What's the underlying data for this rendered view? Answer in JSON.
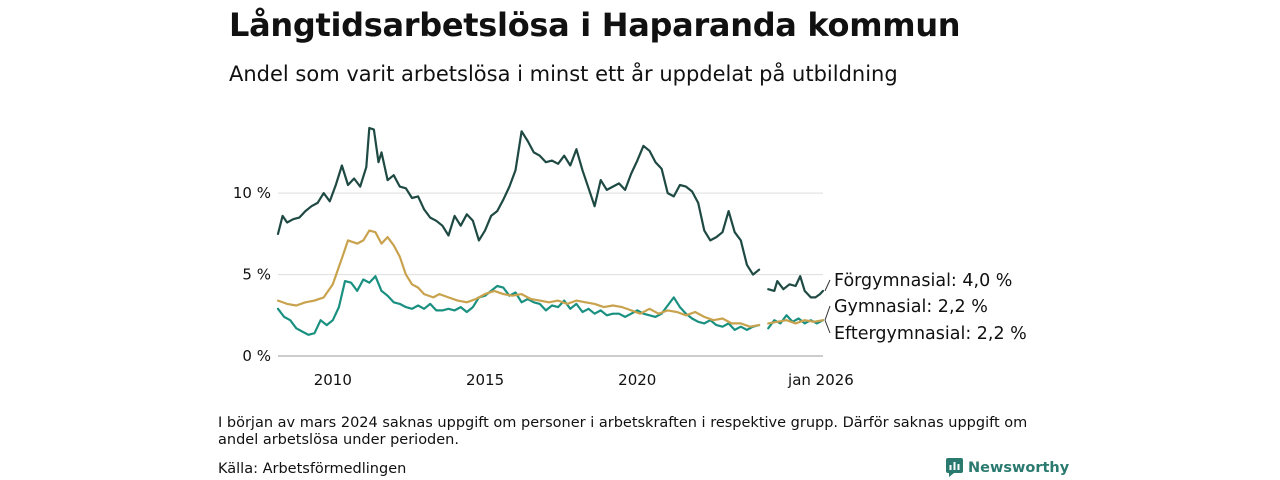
{
  "chart_data": {
    "type": "line",
    "title": "Långtidsarbetslösa i Haparanda kommun",
    "subtitle": "Andel som varit arbetslösa i minst ett år uppdelat på utbildning",
    "x_ticks": [
      {
        "value": 2010,
        "label": "2010"
      },
      {
        "value": 2015,
        "label": "2015"
      },
      {
        "value": 2020,
        "label": "2020"
      },
      {
        "value": 2026,
        "label": "jan 2026"
      }
    ],
    "y_ticks": [
      {
        "value": 0,
        "label": "0 %"
      },
      {
        "value": 5,
        "label": "5 %"
      },
      {
        "value": 10,
        "label": "10 %"
      }
    ],
    "xlim": [
      2008.2,
      2026.1
    ],
    "ylim": [
      0,
      14
    ],
    "gap": [
      2024.1,
      2024.25
    ],
    "series": [
      {
        "name": "Förgymnasial",
        "end_label": "Förgymnasial: 4,0 %",
        "color": "#1f4a44",
        "points": [
          [
            2008.2,
            7.5
          ],
          [
            2008.35,
            8.6
          ],
          [
            2008.5,
            8.2
          ],
          [
            2008.7,
            8.4
          ],
          [
            2008.9,
            8.5
          ],
          [
            2009.1,
            8.9
          ],
          [
            2009.3,
            9.2
          ],
          [
            2009.5,
            9.4
          ],
          [
            2009.7,
            10.0
          ],
          [
            2009.9,
            9.5
          ],
          [
            2010.1,
            10.5
          ],
          [
            2010.3,
            11.7
          ],
          [
            2010.5,
            10.5
          ],
          [
            2010.7,
            10.9
          ],
          [
            2010.9,
            10.4
          ],
          [
            2011.1,
            11.6
          ],
          [
            2011.2,
            14.0
          ],
          [
            2011.35,
            13.9
          ],
          [
            2011.5,
            11.9
          ],
          [
            2011.6,
            12.5
          ],
          [
            2011.8,
            10.8
          ],
          [
            2012.0,
            11.1
          ],
          [
            2012.2,
            10.4
          ],
          [
            2012.4,
            10.3
          ],
          [
            2012.6,
            9.7
          ],
          [
            2012.8,
            9.8
          ],
          [
            2013.0,
            9.0
          ],
          [
            2013.2,
            8.5
          ],
          [
            2013.4,
            8.3
          ],
          [
            2013.6,
            8.0
          ],
          [
            2013.8,
            7.4
          ],
          [
            2014.0,
            8.6
          ],
          [
            2014.2,
            8.0
          ],
          [
            2014.4,
            8.7
          ],
          [
            2014.6,
            8.3
          ],
          [
            2014.8,
            7.1
          ],
          [
            2015.0,
            7.7
          ],
          [
            2015.2,
            8.6
          ],
          [
            2015.4,
            8.9
          ],
          [
            2015.6,
            9.6
          ],
          [
            2015.8,
            10.4
          ],
          [
            2016.0,
            11.4
          ],
          [
            2016.2,
            13.8
          ],
          [
            2016.4,
            13.2
          ],
          [
            2016.6,
            12.5
          ],
          [
            2016.8,
            12.3
          ],
          [
            2017.0,
            11.9
          ],
          [
            2017.2,
            12.0
          ],
          [
            2017.4,
            11.8
          ],
          [
            2017.6,
            12.3
          ],
          [
            2017.8,
            11.7
          ],
          [
            2018.0,
            12.7
          ],
          [
            2018.2,
            11.4
          ],
          [
            2018.4,
            10.3
          ],
          [
            2018.6,
            9.2
          ],
          [
            2018.8,
            10.8
          ],
          [
            2019.0,
            10.2
          ],
          [
            2019.2,
            10.4
          ],
          [
            2019.4,
            10.6
          ],
          [
            2019.6,
            10.2
          ],
          [
            2019.8,
            11.2
          ],
          [
            2020.0,
            12.0
          ],
          [
            2020.2,
            12.9
          ],
          [
            2020.4,
            12.6
          ],
          [
            2020.6,
            11.9
          ],
          [
            2020.8,
            11.5
          ],
          [
            2021.0,
            10.0
          ],
          [
            2021.2,
            9.8
          ],
          [
            2021.4,
            10.5
          ],
          [
            2021.6,
            10.4
          ],
          [
            2021.8,
            10.1
          ],
          [
            2022.0,
            9.4
          ],
          [
            2022.2,
            7.7
          ],
          [
            2022.4,
            7.1
          ],
          [
            2022.6,
            7.3
          ],
          [
            2022.8,
            7.6
          ],
          [
            2023.0,
            8.9
          ],
          [
            2023.2,
            7.6
          ],
          [
            2023.4,
            7.1
          ],
          [
            2023.6,
            5.6
          ],
          [
            2023.8,
            5.0
          ],
          [
            2024.0,
            5.3
          ],
          [
            2024.3,
            4.1
          ],
          [
            2024.5,
            4.0
          ],
          [
            2024.6,
            4.6
          ],
          [
            2024.8,
            4.1
          ],
          [
            2025.0,
            4.4
          ],
          [
            2025.2,
            4.3
          ],
          [
            2025.35,
            4.9
          ],
          [
            2025.5,
            4.0
          ],
          [
            2025.7,
            3.6
          ],
          [
            2025.85,
            3.6
          ],
          [
            2026.0,
            3.8
          ],
          [
            2026.1,
            4.0
          ]
        ]
      },
      {
        "name": "Gymnasial",
        "end_label": "Gymnasial: 2,2 %",
        "color": "#c9a24d",
        "points": [
          [
            2008.2,
            3.4
          ],
          [
            2008.5,
            3.2
          ],
          [
            2008.8,
            3.1
          ],
          [
            2009.1,
            3.3
          ],
          [
            2009.4,
            3.4
          ],
          [
            2009.7,
            3.6
          ],
          [
            2010.0,
            4.4
          ],
          [
            2010.3,
            6.0
          ],
          [
            2010.5,
            7.1
          ],
          [
            2010.8,
            6.9
          ],
          [
            2011.0,
            7.1
          ],
          [
            2011.2,
            7.7
          ],
          [
            2011.4,
            7.6
          ],
          [
            2011.6,
            6.9
          ],
          [
            2011.8,
            7.3
          ],
          [
            2012.0,
            6.8
          ],
          [
            2012.2,
            6.1
          ],
          [
            2012.4,
            5.0
          ],
          [
            2012.6,
            4.4
          ],
          [
            2012.8,
            4.2
          ],
          [
            2013.0,
            3.8
          ],
          [
            2013.3,
            3.6
          ],
          [
            2013.5,
            3.8
          ],
          [
            2013.8,
            3.6
          ],
          [
            2014.1,
            3.4
          ],
          [
            2014.4,
            3.3
          ],
          [
            2014.7,
            3.5
          ],
          [
            2015.0,
            3.8
          ],
          [
            2015.3,
            4.0
          ],
          [
            2015.6,
            3.8
          ],
          [
            2015.9,
            3.7
          ],
          [
            2016.2,
            3.8
          ],
          [
            2016.5,
            3.5
          ],
          [
            2016.8,
            3.4
          ],
          [
            2017.1,
            3.3
          ],
          [
            2017.4,
            3.4
          ],
          [
            2017.7,
            3.2
          ],
          [
            2018.0,
            3.4
          ],
          [
            2018.3,
            3.3
          ],
          [
            2018.6,
            3.2
          ],
          [
            2018.9,
            3.0
          ],
          [
            2019.2,
            3.1
          ],
          [
            2019.5,
            3.0
          ],
          [
            2019.8,
            2.8
          ],
          [
            2020.1,
            2.6
          ],
          [
            2020.4,
            2.9
          ],
          [
            2020.7,
            2.6
          ],
          [
            2021.0,
            2.8
          ],
          [
            2021.3,
            2.7
          ],
          [
            2021.6,
            2.5
          ],
          [
            2021.9,
            2.7
          ],
          [
            2022.2,
            2.4
          ],
          [
            2022.5,
            2.2
          ],
          [
            2022.8,
            2.3
          ],
          [
            2023.1,
            2.0
          ],
          [
            2023.4,
            2.0
          ],
          [
            2023.7,
            1.8
          ],
          [
            2024.0,
            1.9
          ],
          [
            2024.3,
            2.0
          ],
          [
            2024.6,
            2.1
          ],
          [
            2024.9,
            2.2
          ],
          [
            2025.2,
            2.0
          ],
          [
            2025.5,
            2.2
          ],
          [
            2025.8,
            2.1
          ],
          [
            2026.1,
            2.2
          ]
        ]
      },
      {
        "name": "Eftergymnasial",
        "end_label": "Eftergymnasial: 2,2 %",
        "color": "#1a9080",
        "points": [
          [
            2008.2,
            2.9
          ],
          [
            2008.4,
            2.4
          ],
          [
            2008.6,
            2.2
          ],
          [
            2008.8,
            1.7
          ],
          [
            2009.0,
            1.5
          ],
          [
            2009.2,
            1.3
          ],
          [
            2009.4,
            1.4
          ],
          [
            2009.6,
            2.2
          ],
          [
            2009.8,
            1.9
          ],
          [
            2010.0,
            2.2
          ],
          [
            2010.2,
            3.0
          ],
          [
            2010.4,
            4.6
          ],
          [
            2010.6,
            4.5
          ],
          [
            2010.8,
            4.0
          ],
          [
            2011.0,
            4.7
          ],
          [
            2011.2,
            4.5
          ],
          [
            2011.4,
            4.9
          ],
          [
            2011.6,
            4.0
          ],
          [
            2011.8,
            3.7
          ],
          [
            2012.0,
            3.3
          ],
          [
            2012.2,
            3.2
          ],
          [
            2012.4,
            3.0
          ],
          [
            2012.6,
            2.9
          ],
          [
            2012.8,
            3.1
          ],
          [
            2013.0,
            2.9
          ],
          [
            2013.2,
            3.2
          ],
          [
            2013.4,
            2.8
          ],
          [
            2013.6,
            2.8
          ],
          [
            2013.8,
            2.9
          ],
          [
            2014.0,
            2.8
          ],
          [
            2014.2,
            3.0
          ],
          [
            2014.4,
            2.7
          ],
          [
            2014.6,
            3.0
          ],
          [
            2014.8,
            3.6
          ],
          [
            2015.0,
            3.7
          ],
          [
            2015.2,
            4.0
          ],
          [
            2015.4,
            4.3
          ],
          [
            2015.6,
            4.2
          ],
          [
            2015.8,
            3.7
          ],
          [
            2016.0,
            3.9
          ],
          [
            2016.2,
            3.3
          ],
          [
            2016.4,
            3.5
          ],
          [
            2016.6,
            3.3
          ],
          [
            2016.8,
            3.2
          ],
          [
            2017.0,
            2.8
          ],
          [
            2017.2,
            3.1
          ],
          [
            2017.4,
            3.0
          ],
          [
            2017.6,
            3.4
          ],
          [
            2017.8,
            2.9
          ],
          [
            2018.0,
            3.2
          ],
          [
            2018.2,
            2.7
          ],
          [
            2018.4,
            2.9
          ],
          [
            2018.6,
            2.6
          ],
          [
            2018.8,
            2.8
          ],
          [
            2019.0,
            2.5
          ],
          [
            2019.2,
            2.6
          ],
          [
            2019.4,
            2.6
          ],
          [
            2019.6,
            2.4
          ],
          [
            2019.8,
            2.6
          ],
          [
            2020.0,
            2.8
          ],
          [
            2020.2,
            2.6
          ],
          [
            2020.4,
            2.5
          ],
          [
            2020.6,
            2.4
          ],
          [
            2020.8,
            2.6
          ],
          [
            2021.0,
            3.1
          ],
          [
            2021.2,
            3.6
          ],
          [
            2021.4,
            3.0
          ],
          [
            2021.6,
            2.6
          ],
          [
            2021.8,
            2.3
          ],
          [
            2022.0,
            2.1
          ],
          [
            2022.2,
            2.0
          ],
          [
            2022.4,
            2.2
          ],
          [
            2022.6,
            1.9
          ],
          [
            2022.8,
            1.8
          ],
          [
            2023.0,
            2.0
          ],
          [
            2023.2,
            1.6
          ],
          [
            2023.4,
            1.8
          ],
          [
            2023.6,
            1.6
          ],
          [
            2023.8,
            1.8
          ],
          [
            2024.0,
            1.9
          ],
          [
            2024.3,
            1.7
          ],
          [
            2024.5,
            2.2
          ],
          [
            2024.7,
            2.0
          ],
          [
            2024.9,
            2.5
          ],
          [
            2025.1,
            2.1
          ],
          [
            2025.3,
            2.3
          ],
          [
            2025.5,
            2.0
          ],
          [
            2025.7,
            2.2
          ],
          [
            2025.9,
            2.0
          ],
          [
            2026.1,
            2.2
          ]
        ]
      }
    ]
  },
  "footer": {
    "note": "I början av mars 2024 saknas uppgift om personer i arbetskraften i respektive grupp. Därför saknas uppgift om andel arbetslösa under perioden.",
    "source": "Källa: Arbetsförmedlingen",
    "brand": "Newsworthy"
  }
}
